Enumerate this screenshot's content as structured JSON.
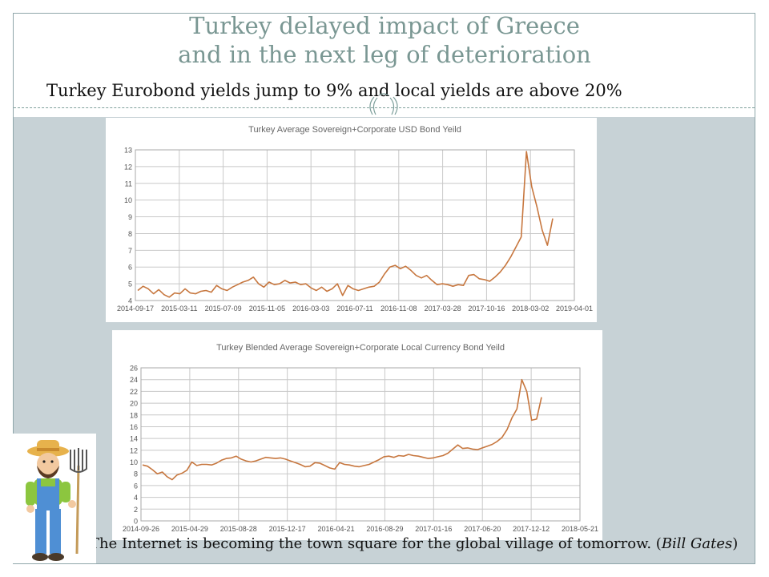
{
  "slide": {
    "title_line1": "Turkey delayed impact of Greece",
    "title_line2": "and in the next leg of deterioration",
    "subtitle": "Turkey Eurobond yields jump to 9% and local yields  are above 20%",
    "quote_text": "The Internet is becoming the town square for the global village of tomorrow. (",
    "quote_author": "Bill Gates",
    "quote_close": ")"
  },
  "colors": {
    "title": "#7a9793",
    "accent_band": "#c7d2d6",
    "series_line": "#c7773f",
    "grid": "#c8c8c8"
  },
  "chart_data": [
    {
      "type": "line",
      "title": "Turkey Average Sovereign+Corporate  USD Bond Yeild",
      "xlabel": "",
      "ylabel": "",
      "ylim": [
        4,
        13
      ],
      "yticks": [
        4,
        5,
        6,
        7,
        8,
        9,
        10,
        11,
        12,
        13
      ],
      "x_tick_labels": [
        "2014-09-17",
        "2015-03-11",
        "2015-07-09",
        "2015-11-05",
        "2016-03-03",
        "2016-07-11",
        "2016-11-08",
        "2017-03-28",
        "2017-10-16",
        "2018-03-02",
        "2019-04-01"
      ],
      "grid": true,
      "legend": "none",
      "series": [
        {
          "values": [
            4.6,
            4.85,
            4.7,
            4.4,
            4.65,
            4.35,
            4.2,
            4.45,
            4.4,
            4.7,
            4.45,
            4.4,
            4.55,
            4.6,
            4.5,
            4.9,
            4.7,
            4.6,
            4.8,
            4.95,
            5.1,
            5.2,
            5.4,
            5.0,
            4.8,
            5.1,
            4.95,
            5.0,
            5.2,
            5.05,
            5.1,
            4.95,
            5.0,
            4.75,
            4.6,
            4.8,
            4.55,
            4.7,
            5.0,
            4.3,
            4.9,
            4.7,
            4.6,
            4.7,
            4.8,
            4.85,
            5.1,
            5.6,
            6.0,
            6.1,
            5.9,
            6.05,
            5.8,
            5.5,
            5.35,
            5.5,
            5.2,
            4.95,
            5.0,
            4.95,
            4.85,
            4.95,
            4.9,
            5.5,
            5.55,
            5.3,
            5.25,
            5.15,
            5.4,
            5.7,
            6.1,
            6.6,
            7.2,
            7.8,
            12.9,
            10.8,
            9.6,
            8.2,
            7.3,
            8.9
          ]
        }
      ]
    },
    {
      "type": "line",
      "title": "Turkey Blended Average Sovereign+Corporate   Local Currency Bond Yeild",
      "xlabel": "",
      "ylabel": "",
      "ylim": [
        0,
        26
      ],
      "yticks": [
        0,
        2,
        4,
        6,
        8,
        10,
        12,
        14,
        16,
        18,
        20,
        22,
        24,
        26
      ],
      "x_tick_labels": [
        "2014-09-26",
        "2015-04-29",
        "2015-08-28",
        "2015-12-17",
        "2016-04-21",
        "2016-08-29",
        "2017-01-16",
        "2017-06-20",
        "2017-12-12",
        "2018-05-21"
      ],
      "grid": true,
      "legend": "none",
      "series": [
        {
          "values": [
            9.5,
            9.3,
            8.7,
            8.0,
            8.3,
            7.5,
            7.0,
            7.8,
            8.1,
            8.6,
            10.0,
            9.4,
            9.6,
            9.6,
            9.5,
            9.8,
            10.3,
            10.6,
            10.7,
            11.0,
            10.5,
            10.2,
            10.0,
            10.2,
            10.5,
            10.8,
            10.7,
            10.6,
            10.7,
            10.5,
            10.2,
            9.9,
            9.6,
            9.2,
            9.3,
            9.9,
            9.8,
            9.4,
            9.0,
            8.8,
            9.9,
            9.6,
            9.5,
            9.3,
            9.2,
            9.4,
            9.6,
            10.0,
            10.4,
            10.9,
            11.0,
            10.8,
            11.1,
            11.0,
            11.3,
            11.1,
            11.0,
            10.8,
            10.6,
            10.7,
            10.9,
            11.1,
            11.5,
            12.2,
            12.9,
            12.3,
            12.4,
            12.2,
            12.1,
            12.4,
            12.7,
            13.0,
            13.5,
            14.2,
            15.5,
            17.5,
            19.0,
            24.0,
            22.0,
            17.1,
            17.3,
            21.0
          ]
        }
      ]
    }
  ]
}
